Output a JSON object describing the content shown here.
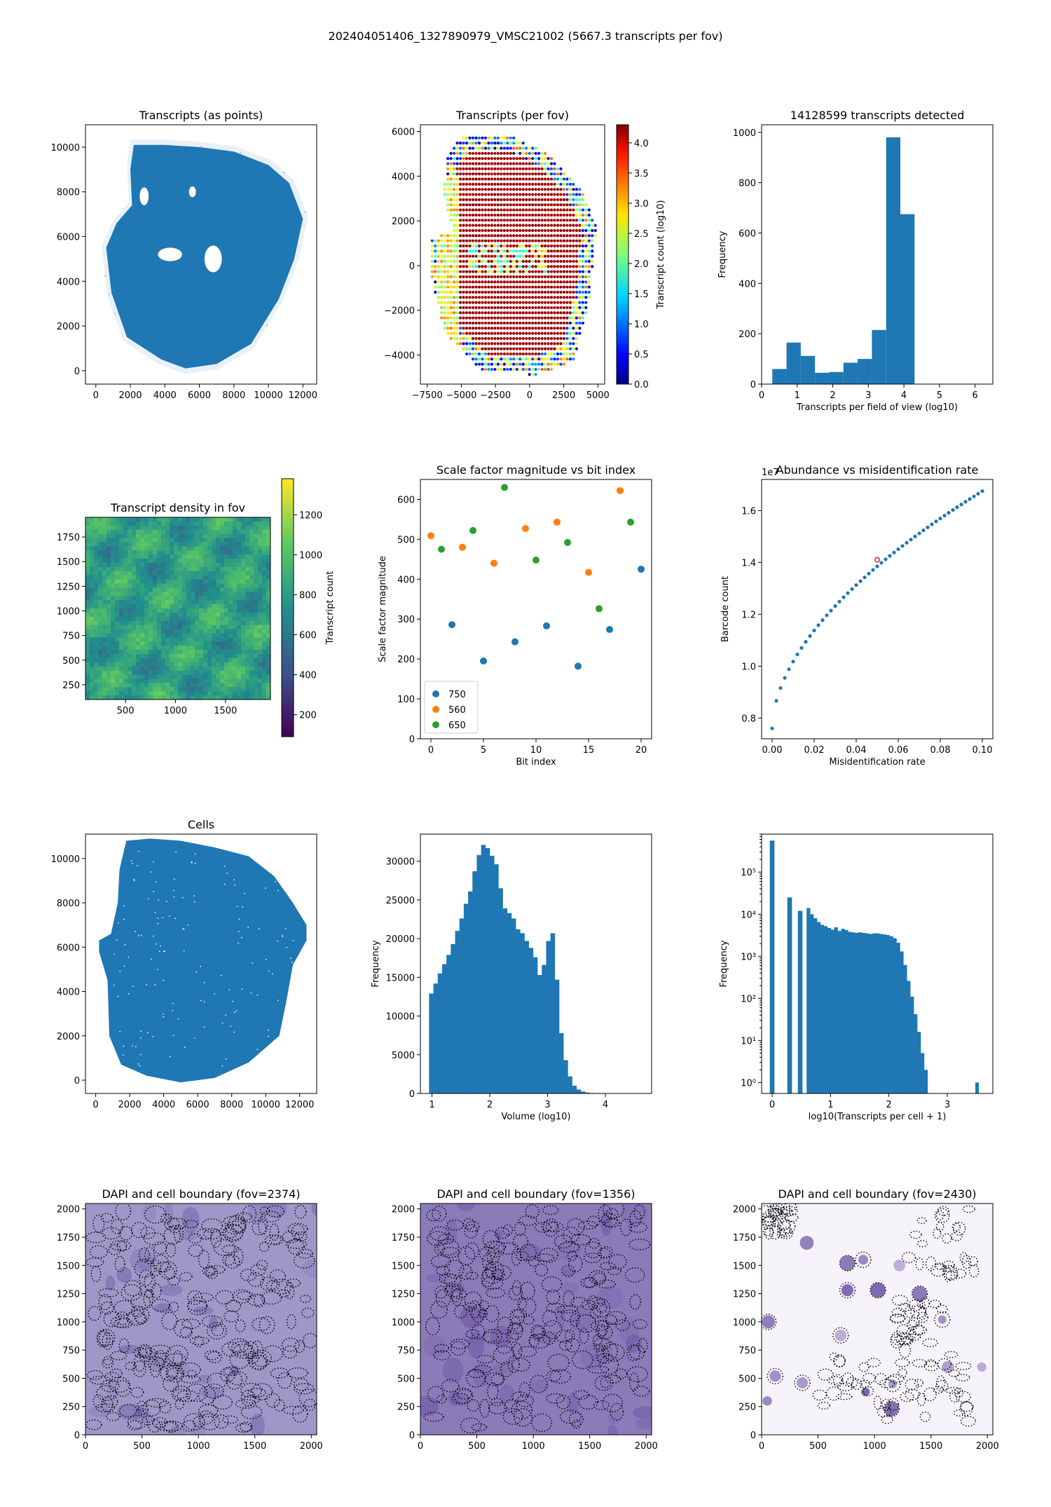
{
  "figure_title": "202404051406_1327890979_VMSC21002 (5667.3 transcripts per fov)",
  "colors": {
    "blue": "#1f77b4",
    "orange": "#ff7f0e",
    "green": "#2ca02c",
    "dapi_purple": "#6a51a3"
  },
  "chart_data": [
    {
      "id": "transcripts_points",
      "type": "scatter",
      "title": "Transcripts (as points)",
      "xlabel": "",
      "ylabel": "",
      "xlim": [
        -600,
        12800
      ],
      "ylim": [
        -600,
        11000
      ],
      "xticks": [
        0,
        2000,
        4000,
        6000,
        8000,
        10000,
        12000
      ],
      "yticks": [
        0,
        2000,
        4000,
        6000,
        8000,
        10000
      ],
      "description_points": "dense cloud of transcript positions forming tissue section shape",
      "outline": [
        [
          2200,
          10100
        ],
        [
          4000,
          10100
        ],
        [
          6000,
          10000
        ],
        [
          8000,
          9800
        ],
        [
          10000,
          9200
        ],
        [
          11200,
          8400
        ],
        [
          12000,
          6800
        ],
        [
          11500,
          5000
        ],
        [
          10600,
          3200
        ],
        [
          9000,
          1200
        ],
        [
          7000,
          300
        ],
        [
          5200,
          100
        ],
        [
          3800,
          500
        ],
        [
          1800,
          1500
        ],
        [
          900,
          3500
        ],
        [
          600,
          5500
        ],
        [
          1200,
          6600
        ],
        [
          2100,
          7400
        ],
        [
          2000,
          9000
        ]
      ]
    },
    {
      "id": "transcripts_per_fov",
      "type": "scatter",
      "title": "Transcripts (per fov)",
      "xlabel": "",
      "ylabel": "",
      "xlim": [
        -8000,
        5500
      ],
      "ylim": [
        -5300,
        6300
      ],
      "xticks": [
        -7500,
        -5000,
        -2500,
        0,
        2500,
        5000
      ],
      "yticks": [
        -4000,
        -2000,
        0,
        2000,
        4000,
        6000
      ],
      "colorbar": {
        "label": "Transcript count (log10)",
        "range": [
          0,
          4.3
        ],
        "ticks": [
          0.0,
          0.5,
          1.0,
          1.5,
          2.0,
          2.5,
          3.0,
          3.5,
          4.0
        ],
        "cmap": "jet"
      }
    },
    {
      "id": "fov_histogram",
      "type": "bar",
      "title": "14128599 transcripts detected",
      "xlabel": "Transcripts per field of view (log10)",
      "ylabel": "Frequency",
      "xlim": [
        0,
        6.5
      ],
      "ylim": [
        0,
        1030
      ],
      "xticks": [
        0,
        1,
        2,
        3,
        4,
        5,
        6
      ],
      "yticks": [
        0,
        200,
        400,
        600,
        800,
        1000
      ],
      "bin_edges": [
        0.3,
        0.7,
        1.1,
        1.5,
        1.9,
        2.3,
        2.7,
        3.1,
        3.5,
        3.9,
        4.3
      ],
      "values": [
        60,
        165,
        112,
        45,
        48,
        85,
        100,
        215,
        980,
        675
      ]
    },
    {
      "id": "transcript_density",
      "type": "heatmap",
      "title": "Transcript density in fov",
      "xlabel": "",
      "ylabel": "",
      "xlim": [
        100,
        1950
      ],
      "ylim": [
        100,
        1950
      ],
      "xticks": [
        500,
        1000,
        1500
      ],
      "yticks": [
        250,
        500,
        750,
        1000,
        1250,
        1500,
        1750
      ],
      "colorbar": {
        "label": "Transcript count",
        "range": [
          90,
          1380
        ],
        "ticks": [
          200,
          400,
          600,
          800,
          1000,
          1200
        ],
        "cmap": "viridis"
      }
    },
    {
      "id": "scale_factor",
      "type": "scatter",
      "title": "Scale factor magnitude vs bit index",
      "xlabel": "Bit index",
      "ylabel": "Scale factor magnitude",
      "xlim": [
        -1,
        21
      ],
      "ylim": [
        0,
        650
      ],
      "xticks": [
        0,
        5,
        10,
        15,
        20
      ],
      "yticks": [
        0,
        100,
        200,
        300,
        400,
        500,
        600
      ],
      "legend": "lower-left",
      "series": [
        {
          "name": "750",
          "color": "#1f77b4",
          "x": [
            2,
            5,
            8,
            11,
            14,
            17,
            20
          ],
          "y": [
            286,
            195,
            243,
            283,
            182,
            274,
            425
          ]
        },
        {
          "name": "560",
          "color": "#ff7f0e",
          "x": [
            0,
            3,
            6,
            9,
            12,
            15,
            18
          ],
          "y": [
            509,
            480,
            440,
            527,
            543,
            417,
            622
          ]
        },
        {
          "name": "650",
          "color": "#2ca02c",
          "x": [
            1,
            4,
            7,
            10,
            13,
            16,
            19
          ],
          "y": [
            475,
            522,
            630,
            448,
            492,
            326,
            543
          ]
        }
      ]
    },
    {
      "id": "abundance",
      "type": "scatter",
      "title": "Abundance vs misidentification rate",
      "xlabel": "Misidentification rate",
      "ylabel": "Barcode count",
      "offset_text": "1e7",
      "xlim": [
        -0.005,
        0.105
      ],
      "ylim": [
        0.72,
        1.72
      ],
      "xticks": [
        0.0,
        0.02,
        0.04,
        0.06,
        0.08,
        0.1
      ],
      "yticks": [
        0.8,
        1.0,
        1.2,
        1.4,
        1.6
      ],
      "highlight": {
        "x": 0.05,
        "y": 1.41,
        "color": "#d62728"
      }
    },
    {
      "id": "cells",
      "type": "scatter",
      "title": "Cells",
      "xlabel": "",
      "ylabel": "",
      "xlim": [
        -600,
        13000
      ],
      "ylim": [
        -600,
        11100
      ],
      "xticks": [
        0,
        2000,
        4000,
        6000,
        8000,
        10000,
        12000
      ],
      "yticks": [
        0,
        2000,
        4000,
        6000,
        8000,
        10000
      ],
      "outline": [
        [
          1800,
          10800
        ],
        [
          3200,
          10900
        ],
        [
          5000,
          10800
        ],
        [
          7000,
          10500
        ],
        [
          9000,
          10100
        ],
        [
          10500,
          9200
        ],
        [
          11600,
          8000
        ],
        [
          12400,
          7000
        ],
        [
          12400,
          6300
        ],
        [
          11600,
          5200
        ],
        [
          11200,
          3500
        ],
        [
          10800,
          2000
        ],
        [
          9000,
          800
        ],
        [
          7000,
          100
        ],
        [
          5000,
          -100
        ],
        [
          3000,
          200
        ],
        [
          1500,
          700
        ],
        [
          800,
          2000
        ],
        [
          700,
          4500
        ],
        [
          200,
          5800
        ],
        [
          200,
          6300
        ],
        [
          900,
          6600
        ],
        [
          1300,
          8000
        ],
        [
          1400,
          9500
        ]
      ]
    },
    {
      "id": "volume_hist",
      "type": "bar",
      "title": "",
      "xlabel": "Volume (log10)",
      "ylabel": "Frequency",
      "xlim": [
        0.8,
        4.8
      ],
      "ylim": [
        0,
        33500
      ],
      "xticks": [
        1,
        2,
        3,
        4
      ],
      "yticks": [
        0,
        5000,
        10000,
        15000,
        20000,
        25000,
        30000
      ],
      "bin_start": 0.95,
      "bin_width": 0.075,
      "values": [
        12900,
        14200,
        15500,
        16700,
        17900,
        19300,
        21000,
        22600,
        24500,
        26100,
        28700,
        30800,
        32100,
        31700,
        30700,
        29600,
        26500,
        23900,
        23300,
        22600,
        21200,
        20700,
        19700,
        18800,
        17600,
        15300,
        16600,
        19700,
        20700,
        14700,
        7800,
        4300,
        2200,
        1000,
        500,
        250,
        120,
        60,
        30,
        15,
        8,
        5
      ]
    },
    {
      "id": "transcripts_per_cell",
      "type": "bar",
      "title": "",
      "xlabel": "log10(Transcripts per cell + 1)",
      "ylabel": "Frequency",
      "yscale": "log",
      "xlim": [
        -0.18,
        3.78
      ],
      "ylim": [
        0.55,
        800000
      ],
      "xticks": [
        0,
        1,
        2,
        3
      ],
      "yticks_labels": [
        "10⁰",
        "10¹",
        "10²",
        "10³",
        "10⁴",
        "10⁵"
      ],
      "bins": [
        {
          "x0": -0.04,
          "x1": 0.04,
          "v": 560000
        },
        {
          "x0": 0.26,
          "x1": 0.34,
          "v": 25000
        },
        {
          "x0": 0.44,
          "x1": 0.52,
          "v": 12000
        }
      ],
      "dense_start": 0.59,
      "dense_width": 0.0592,
      "dense_values": [
        14000,
        10000,
        8000,
        6500,
        5600,
        5200,
        4700,
        4300,
        4900,
        4000,
        4500,
        4200,
        3800,
        3700,
        3600,
        3700,
        3600,
        3500,
        3400,
        3500,
        3500,
        3400,
        3300,
        3200,
        3000,
        2700,
        2100,
        1300,
        620,
        260,
        110,
        42,
        16,
        5,
        2
      ],
      "outlier": {
        "x0": 3.48,
        "x1": 3.54,
        "v": 1
      }
    },
    {
      "id": "dapi_2374",
      "type": "heatmap",
      "title": "DAPI and cell boundary (fov=2374)",
      "xlabel": "",
      "ylabel": "",
      "xlim": [
        0,
        2048
      ],
      "ylim": [
        0,
        2048
      ],
      "xticks": [
        0,
        500,
        1000,
        1500,
        2000
      ],
      "yticks": [
        0,
        250,
        500,
        750,
        1000,
        1250,
        1500,
        1750,
        2000
      ]
    },
    {
      "id": "dapi_1356",
      "type": "heatmap",
      "title": "DAPI and cell boundary (fov=1356)",
      "xlabel": "",
      "ylabel": "",
      "xlim": [
        0,
        2048
      ],
      "ylim": [
        0,
        2048
      ],
      "xticks": [
        0,
        500,
        1000,
        1500,
        2000
      ],
      "yticks": [
        0,
        250,
        500,
        750,
        1000,
        1250,
        1500,
        1750,
        2000
      ]
    },
    {
      "id": "dapi_2430",
      "type": "heatmap",
      "title": "DAPI and cell boundary (fov=2430)",
      "xlabel": "",
      "ylabel": "",
      "xlim": [
        0,
        2048
      ],
      "ylim": [
        0,
        2048
      ],
      "xticks": [
        0,
        500,
        1000,
        1500,
        2000
      ],
      "yticks": [
        0,
        250,
        500,
        750,
        1000,
        1250,
        1500,
        1750,
        2000
      ]
    }
  ]
}
